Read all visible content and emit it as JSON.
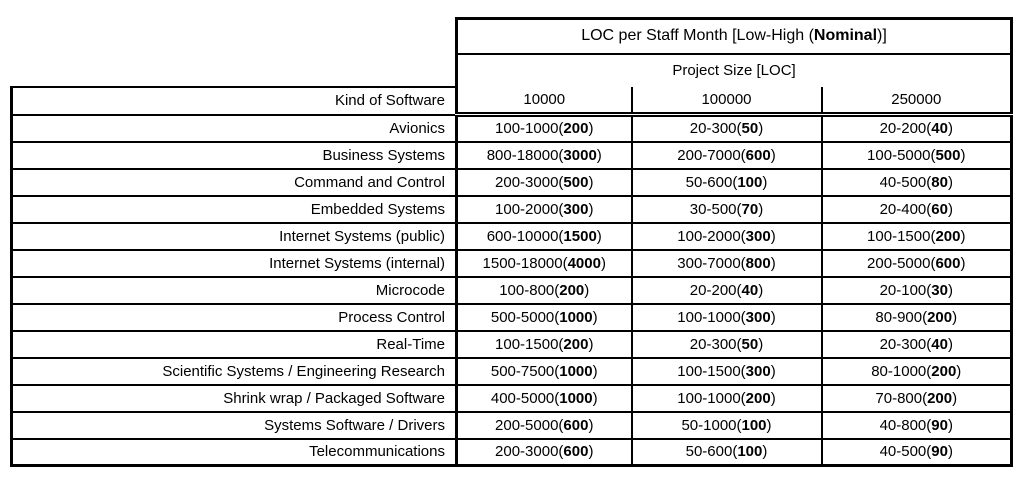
{
  "table": {
    "title": {
      "pre": "LOC per Staff Month [Low-High (",
      "bold": "Nominal",
      "post": ")]"
    },
    "subtitle": "Project Size [LOC]",
    "row_header": "Kind of Software",
    "size_columns": [
      "10000",
      "100000",
      "250000"
    ],
    "rows": [
      {
        "name": "Avionics",
        "cells": [
          {
            "range": "100-1000",
            "nominal": "200"
          },
          {
            "range": "20-300",
            "nominal": "50"
          },
          {
            "range": "20-200",
            "nominal": "40"
          }
        ]
      },
      {
        "name": "Business Systems",
        "cells": [
          {
            "range": "800-18000",
            "nominal": "3000"
          },
          {
            "range": "200-7000",
            "nominal": "600"
          },
          {
            "range": "100-5000",
            "nominal": "500"
          }
        ]
      },
      {
        "name": "Command and Control",
        "cells": [
          {
            "range": "200-3000",
            "nominal": "500"
          },
          {
            "range": "50-600",
            "nominal": "100"
          },
          {
            "range": "40-500",
            "nominal": "80"
          }
        ]
      },
      {
        "name": "Embedded Systems",
        "cells": [
          {
            "range": "100-2000",
            "nominal": "300"
          },
          {
            "range": "30-500",
            "nominal": "70"
          },
          {
            "range": "20-400",
            "nominal": "60"
          }
        ]
      },
      {
        "name": "Internet Systems (public)",
        "cells": [
          {
            "range": "600-10000",
            "nominal": "1500"
          },
          {
            "range": "100-2000",
            "nominal": "300"
          },
          {
            "range": "100-1500",
            "nominal": "200"
          }
        ]
      },
      {
        "name": "Internet Systems (internal)",
        "cells": [
          {
            "range": "1500-18000",
            "nominal": "4000"
          },
          {
            "range": "300-7000",
            "nominal": "800"
          },
          {
            "range": "200-5000",
            "nominal": "600"
          }
        ]
      },
      {
        "name": "Microcode",
        "cells": [
          {
            "range": "100-800",
            "nominal": "200"
          },
          {
            "range": "20-200",
            "nominal": "40"
          },
          {
            "range": "20-100",
            "nominal": "30"
          }
        ]
      },
      {
        "name": "Process Control",
        "cells": [
          {
            "range": "500-5000",
            "nominal": "1000"
          },
          {
            "range": "100-1000",
            "nominal": "300"
          },
          {
            "range": "80-900",
            "nominal": "200"
          }
        ]
      },
      {
        "name": "Real-Time",
        "cells": [
          {
            "range": "100-1500",
            "nominal": "200"
          },
          {
            "range": "20-300",
            "nominal": "50"
          },
          {
            "range": "20-300",
            "nominal": "40"
          }
        ]
      },
      {
        "name": "Scientific Systems / Engineering Research",
        "cells": [
          {
            "range": "500-7500",
            "nominal": "1000"
          },
          {
            "range": "100-1500",
            "nominal": "300"
          },
          {
            "range": "80-1000",
            "nominal": "200"
          }
        ]
      },
      {
        "name": "Shrink wrap / Packaged Software",
        "cells": [
          {
            "range": "400-5000",
            "nominal": "1000"
          },
          {
            "range": "100-1000",
            "nominal": "200"
          },
          {
            "range": "70-800",
            "nominal": "200"
          }
        ]
      },
      {
        "name": "Systems Software / Drivers",
        "cells": [
          {
            "range": "200-5000",
            "nominal": "600"
          },
          {
            "range": "50-1000",
            "nominal": "100"
          },
          {
            "range": "40-800",
            "nominal": "90"
          }
        ]
      },
      {
        "name": "Telecommunications",
        "cells": [
          {
            "range": "200-3000",
            "nominal": "600"
          },
          {
            "range": "50-600",
            "nominal": "100"
          },
          {
            "range": "40-500",
            "nominal": "90"
          }
        ]
      }
    ]
  }
}
